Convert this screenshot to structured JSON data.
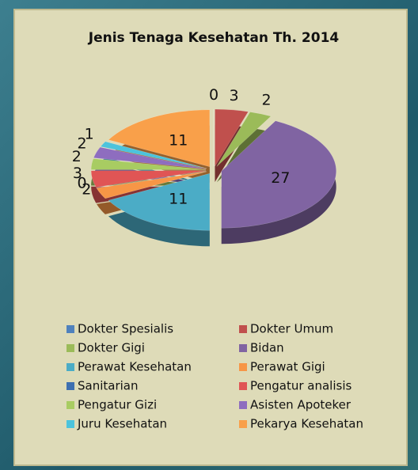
{
  "chart_data": {
    "type": "pie",
    "title": "Jenis Tenaga Kesehatan Th. 2014",
    "categories": [
      "Dokter Spesialis",
      "Dokter Umum",
      "Dokter Gigi",
      "Bidan",
      "Perawat Kesehatan",
      "Perawat Gigi",
      "Sanitarian",
      "Pengatur analisis",
      "Pengatur Gizi",
      "Asisten Apoteker",
      "Juru Kesehatan",
      "Pekarya Kesehatan"
    ],
    "values": [
      0,
      3,
      2,
      27,
      11,
      2,
      0,
      3,
      2,
      2,
      1,
      11
    ],
    "colors": [
      "#4f81bd",
      "#c0504d",
      "#9bbb59",
      "#8064a2",
      "#4bacc6",
      "#f79646",
      "#3d6fb0",
      "#e05555",
      "#a8cc62",
      "#8e6dbf",
      "#4cc3dc",
      "#f9a04a"
    ],
    "legend": "bottom"
  }
}
